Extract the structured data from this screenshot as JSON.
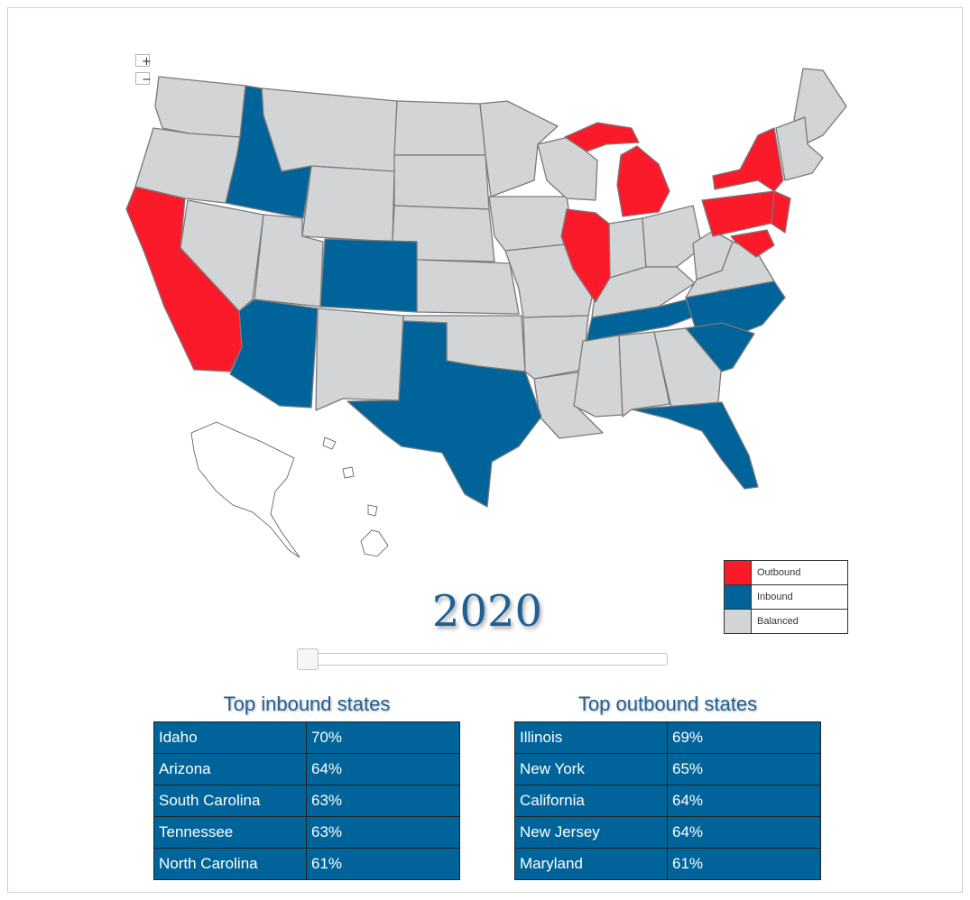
{
  "map": {
    "colors": {
      "outbound": "#fb1a2a",
      "inbound": "#00649a",
      "balanced": "#d3d4d6"
    },
    "zoom_in_label": "+",
    "zoom_out_label": "−",
    "legend": [
      {
        "label": "Outbound",
        "color": "#fb1a2a"
      },
      {
        "label": "Inbound",
        "color": "#00649a"
      },
      {
        "label": "Balanced",
        "color": "#d3d4d6"
      }
    ]
  },
  "year": "2020",
  "slider": {
    "value": "2020"
  },
  "inbound": {
    "title": "Top inbound states",
    "rows": [
      {
        "state": "Idaho",
        "pct": "70%"
      },
      {
        "state": "Arizona",
        "pct": "64%"
      },
      {
        "state": "South Carolina",
        "pct": "63%"
      },
      {
        "state": "Tennessee",
        "pct": "63%"
      },
      {
        "state": "North Carolina",
        "pct": "61%"
      }
    ]
  },
  "outbound": {
    "title": "Top outbound states",
    "rows": [
      {
        "state": "Illinois",
        "pct": "69%"
      },
      {
        "state": "New York",
        "pct": "65%"
      },
      {
        "state": "California",
        "pct": "64%"
      },
      {
        "state": "New Jersey",
        "pct": "64%"
      },
      {
        "state": "Maryland",
        "pct": "61%"
      }
    ]
  }
}
